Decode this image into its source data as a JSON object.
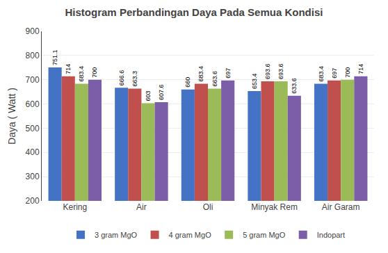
{
  "chart_data": {
    "type": "bar",
    "title": "Histogram Perbandingan Daya Pada Semua Kondisi",
    "ylabel": "Daya ( Watt )",
    "categories": [
      "Kering",
      "Air",
      "Oli",
      "Minyak Rem",
      "Air Garam"
    ],
    "series": [
      {
        "name": "3 gram MgO",
        "color": "#4472C4",
        "values": [
          751.1,
          666.6,
          660,
          653.4,
          683.4
        ]
      },
      {
        "name": "4 gram MgO",
        "color": "#C0504D",
        "values": [
          714,
          663.3,
          683.4,
          693.6,
          697
        ]
      },
      {
        "name": "5 gram MgO",
        "color": "#9BBB59",
        "values": [
          683.4,
          603,
          663.6,
          693.6,
          700
        ]
      },
      {
        "name": "Indopart",
        "color": "#7B5EA7",
        "values": [
          700,
          607.6,
          697,
          633.6,
          714
        ]
      }
    ],
    "ylim": [
      200,
      900
    ],
    "yticks": [
      200,
      300,
      400,
      500,
      600,
      700,
      800,
      900
    ],
    "grid": true,
    "legend": "bottom",
    "data_labels": true
  }
}
